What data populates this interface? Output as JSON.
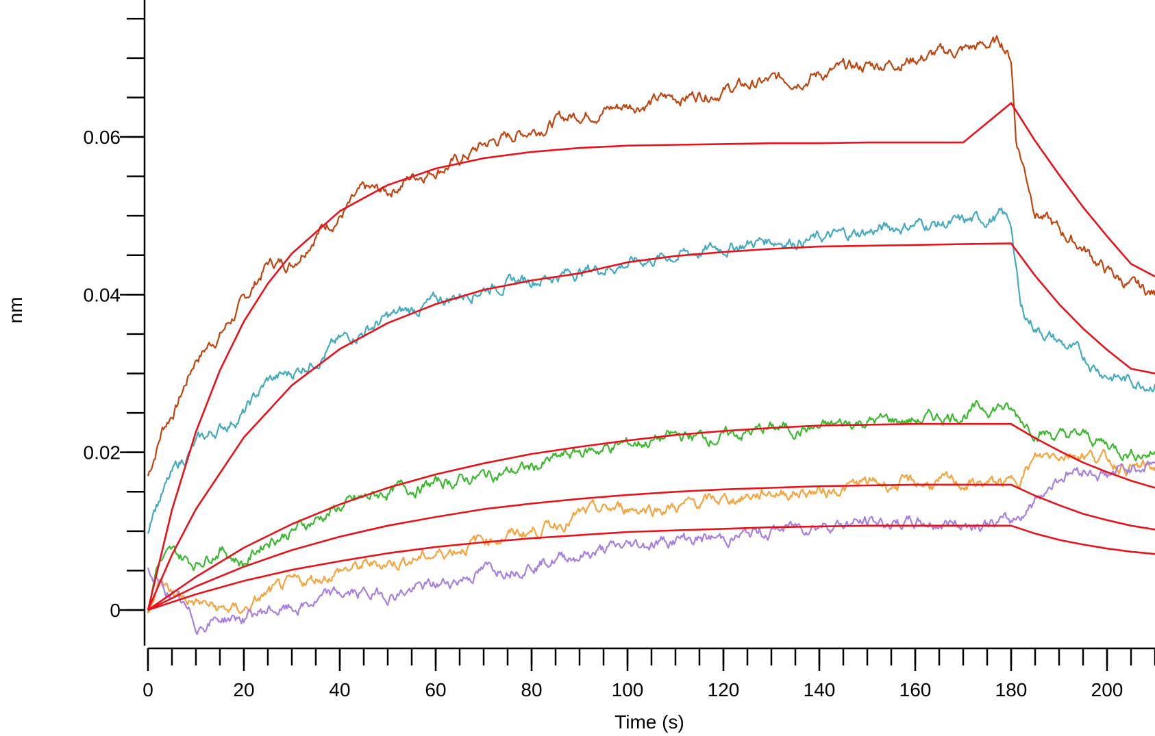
{
  "chart_data": {
    "type": "line",
    "title": "",
    "xlabel": "Time (s)",
    "ylabel": "nm",
    "xlim": [
      0,
      210
    ],
    "ylim": [
      -0.0045,
      0.078
    ],
    "x_ticks": [
      0,
      20,
      40,
      60,
      80,
      100,
      120,
      140,
      160,
      180,
      200
    ],
    "y_ticks": [
      0,
      0.02,
      0.04,
      0.06
    ],
    "y_tick_labels": [
      "0",
      "0.02",
      "0.04",
      "0.06"
    ],
    "x_minor_step": 5,
    "y_minor_step": 0.005,
    "grid": false,
    "legend": "none",
    "association_end_s": 180,
    "series": [
      {
        "color": "#c0440e",
        "x": [
          0,
          1,
          3,
          6,
          10,
          15,
          20,
          25,
          30,
          35,
          40,
          45,
          50,
          55,
          60,
          65,
          70,
          75,
          80,
          90,
          100,
          110,
          120,
          130,
          140,
          150,
          160,
          170,
          178,
          180,
          181,
          185,
          190,
          195,
          200,
          205,
          210
        ],
        "y": [
          0.017,
          0.019,
          0.023,
          0.026,
          0.032,
          0.035,
          0.039,
          0.044,
          0.044,
          0.048,
          0.05,
          0.053,
          0.053,
          0.055,
          0.056,
          0.057,
          0.059,
          0.06,
          0.061,
          0.063,
          0.064,
          0.065,
          0.066,
          0.067,
          0.068,
          0.069,
          0.07,
          0.071,
          0.072,
          0.07,
          0.06,
          0.051,
          0.048,
          0.046,
          0.043,
          0.041,
          0.04
        ]
      },
      {
        "color": "#43aabf",
        "x": [
          0,
          1,
          3,
          6,
          10,
          15,
          20,
          25,
          30,
          40,
          50,
          60,
          70,
          80,
          90,
          100,
          110,
          120,
          130,
          140,
          150,
          160,
          170,
          178,
          180,
          182,
          185,
          190,
          195,
          200,
          205,
          210
        ],
        "y": [
          0.01,
          0.013,
          0.015,
          0.018,
          0.021,
          0.023,
          0.025,
          0.029,
          0.03,
          0.034,
          0.037,
          0.039,
          0.041,
          0.042,
          0.043,
          0.044,
          0.045,
          0.046,
          0.047,
          0.047,
          0.048,
          0.049,
          0.049,
          0.05,
          0.049,
          0.038,
          0.036,
          0.034,
          0.032,
          0.03,
          0.029,
          0.029
        ]
      },
      {
        "color": "#3cb830",
        "x": [
          0,
          2,
          5,
          10,
          15,
          20,
          25,
          30,
          40,
          50,
          60,
          70,
          80,
          90,
          100,
          110,
          120,
          130,
          140,
          150,
          160,
          170,
          178,
          180,
          185,
          190,
          195,
          200,
          205,
          210
        ],
        "y": [
          0.0,
          0.006,
          0.007,
          0.006,
          0.008,
          0.006,
          0.009,
          0.01,
          0.013,
          0.015,
          0.016,
          0.017,
          0.018,
          0.02,
          0.021,
          0.022,
          0.022,
          0.023,
          0.023,
          0.024,
          0.024,
          0.025,
          0.026,
          0.025,
          0.023,
          0.022,
          0.022,
          0.021,
          0.02,
          0.02
        ]
      },
      {
        "color": "#f5a33c",
        "x": [
          0,
          2,
          5,
          10,
          15,
          20,
          25,
          30,
          40,
          50,
          60,
          70,
          80,
          90,
          100,
          110,
          120,
          130,
          140,
          150,
          160,
          170,
          178,
          180,
          185,
          190,
          195,
          200,
          205,
          210
        ],
        "y": [
          0.0,
          0.004,
          0.002,
          0.001,
          0.0,
          0.0,
          0.002,
          0.003,
          0.005,
          0.006,
          0.007,
          0.009,
          0.01,
          0.012,
          0.013,
          0.013,
          0.014,
          0.015,
          0.015,
          0.016,
          0.016,
          0.016,
          0.016,
          0.016,
          0.019,
          0.02,
          0.02,
          0.019,
          0.018,
          0.018
        ]
      },
      {
        "color": "#a77fe0",
        "x": [
          0,
          2,
          5,
          10,
          15,
          20,
          25,
          30,
          40,
          50,
          60,
          70,
          80,
          90,
          100,
          110,
          120,
          130,
          140,
          150,
          160,
          170,
          178,
          180,
          185,
          190,
          195,
          200,
          205,
          210
        ],
        "y": [
          0.005,
          0.003,
          0.002,
          -0.002,
          -0.001,
          -0.001,
          0.0,
          0.0,
          0.002,
          0.002,
          0.003,
          0.005,
          0.006,
          0.007,
          0.008,
          0.009,
          0.009,
          0.01,
          0.011,
          0.011,
          0.011,
          0.011,
          0.011,
          0.011,
          0.014,
          0.017,
          0.018,
          0.017,
          0.018,
          0.019
        ]
      }
    ],
    "fits": [
      {
        "color": "#e8121b",
        "x": [
          0,
          5,
          10,
          15,
          20,
          25,
          30,
          40,
          50,
          60,
          70,
          80,
          90,
          100,
          110,
          120,
          130,
          140,
          150,
          160,
          170,
          180,
          185,
          190,
          195,
          200,
          205,
          210
        ],
        "y": [
          0.0,
          0.0127,
          0.0226,
          0.0304,
          0.0366,
          0.0414,
          0.0452,
          0.0506,
          0.0539,
          0.056,
          0.0573,
          0.0581,
          0.0586,
          0.0589,
          0.059,
          0.0591,
          0.0592,
          0.0592,
          0.0593,
          0.0593,
          0.0593,
          0.0643,
          0.0595,
          0.0552,
          0.0511,
          0.0474,
          0.0439,
          0.0423
        ]
      },
      {
        "color": "#e8121b",
        "x": [
          0,
          5,
          10,
          20,
          30,
          40,
          50,
          60,
          70,
          80,
          90,
          100,
          110,
          120,
          130,
          140,
          150,
          160,
          170,
          180,
          185,
          190,
          195,
          200,
          205,
          210
        ],
        "y": [
          0.0,
          0.007,
          0.0128,
          0.0219,
          0.0285,
          0.0331,
          0.0364,
          0.0388,
          0.0406,
          0.0418,
          0.0427,
          0.0441,
          0.0449,
          0.0454,
          0.0458,
          0.0461,
          0.0462,
          0.0463,
          0.0464,
          0.0465,
          0.0424,
          0.0388,
          0.0357,
          0.033,
          0.0306,
          0.03
        ]
      },
      {
        "color": "#e8121b",
        "x": [
          0,
          10,
          20,
          30,
          40,
          50,
          60,
          70,
          80,
          90,
          100,
          110,
          120,
          130,
          140,
          150,
          160,
          170,
          180,
          185,
          190,
          195,
          200,
          205,
          210
        ],
        "y": [
          0.0,
          0.0042,
          0.0079,
          0.0109,
          0.0134,
          0.0155,
          0.0172,
          0.0186,
          0.0198,
          0.0207,
          0.0215,
          0.0222,
          0.0227,
          0.0231,
          0.0234,
          0.0235,
          0.0236,
          0.0236,
          0.0236,
          0.0218,
          0.0202,
          0.0187,
          0.0175,
          0.0164,
          0.0155
        ]
      },
      {
        "color": "#e8121b",
        "x": [
          0,
          10,
          20,
          30,
          40,
          50,
          60,
          70,
          80,
          90,
          100,
          110,
          120,
          130,
          140,
          150,
          160,
          170,
          180,
          185,
          190,
          195,
          200,
          205,
          210
        ],
        "y": [
          0.0,
          0.003,
          0.0055,
          0.0076,
          0.0093,
          0.0107,
          0.0118,
          0.0128,
          0.0135,
          0.0141,
          0.0146,
          0.015,
          0.0153,
          0.0155,
          0.0157,
          0.0158,
          0.0159,
          0.0159,
          0.0159,
          0.0145,
          0.0133,
          0.0122,
          0.0114,
          0.0107,
          0.0102
        ]
      },
      {
        "color": "#e8121b",
        "x": [
          0,
          10,
          20,
          30,
          40,
          50,
          60,
          70,
          80,
          90,
          100,
          110,
          120,
          130,
          140,
          150,
          160,
          170,
          180,
          185,
          190,
          195,
          200,
          205,
          210
        ],
        "y": [
          0.0,
          0.002,
          0.0037,
          0.0051,
          0.0062,
          0.0072,
          0.008,
          0.0086,
          0.0091,
          0.0095,
          0.0099,
          0.0101,
          0.0103,
          0.0105,
          0.0106,
          0.0107,
          0.0107,
          0.0107,
          0.0107,
          0.0097,
          0.0089,
          0.0083,
          0.0078,
          0.0074,
          0.0071
        ]
      }
    ]
  }
}
